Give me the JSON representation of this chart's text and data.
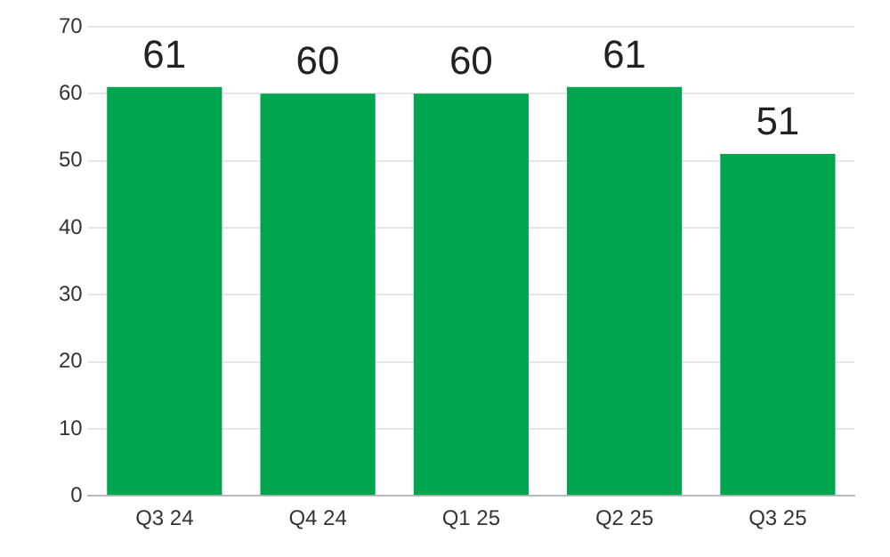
{
  "chart_data": {
    "type": "bar",
    "categories": [
      "Q3 24",
      "Q4 24",
      "Q1 25",
      "Q2 25",
      "Q3 25"
    ],
    "values": [
      61,
      60,
      60,
      61,
      51
    ],
    "color": "#00a550",
    "ylim": [
      0,
      70
    ],
    "yticks": [
      0,
      10,
      20,
      30,
      40,
      50,
      60,
      70
    ],
    "grid": "y",
    "data_labels": true
  }
}
